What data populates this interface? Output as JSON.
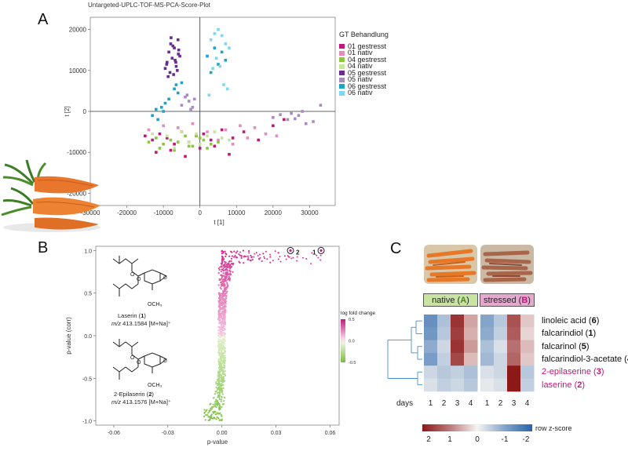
{
  "panels": {
    "a": "A",
    "b": "B",
    "c": "C"
  },
  "panel_a": {
    "title": "Untargeted-UPLC-TOF-MS-PCA-Score-Plot",
    "legend_title": "GT Behandlung",
    "legend": [
      {
        "label": "01 gestresst",
        "color": "#c2187a"
      },
      {
        "label": "01 nativ",
        "color": "#e58ac0"
      },
      {
        "label": "04 gestresst",
        "color": "#8cc63f"
      },
      {
        "label": "04 nativ",
        "color": "#c8e39a"
      },
      {
        "label": "05 gestresst",
        "color": "#6a2c91"
      },
      {
        "label": "05 nativ",
        "color": "#a98bc4"
      },
      {
        "label": "06 gestresst",
        "color": "#1ca3c6"
      },
      {
        "label": "06 nativ",
        "color": "#7fd6ee"
      }
    ],
    "xlabel": "t [1]",
    "ylabel": "t [2]",
    "xticks": [
      "-30000",
      "-20000",
      "-10000",
      "0",
      "10000",
      "20000",
      "30000"
    ],
    "yticks": [
      "20000",
      "10000",
      "0",
      "-10000",
      "-20000"
    ],
    "photo": "carrots-photo"
  },
  "panel_b": {
    "xlabel": "p-value",
    "ylabel": "p-value (corr)",
    "xticks": [
      "-0.06",
      "-0.03",
      "0.00",
      "0.03",
      "0.06"
    ],
    "yticks": [
      "1.0",
      "0.5",
      "0.0",
      "-0.5",
      "-1.0"
    ],
    "colorbar_title": "log fold change",
    "colorbar_ticks": [
      "0.5",
      "0.0",
      "-0.5"
    ],
    "compound1_name": "Laserin (",
    "compound1_num": "1",
    "compound1_close": ")",
    "compound1_mz": "m/z",
    "compound1_mass": " 413.1584 [M+Na]⁺",
    "compound2_name": "2-Epilaserin (",
    "compound2_num": "2",
    "compound2_close": ")",
    "compound2_mz": "m/z",
    "compound2_mass": " 413.1576 [M+Na]⁺",
    "substituent": "OCH₃",
    "mark1": "1",
    "mark2": "2"
  },
  "panel_c": {
    "native_label": "native (",
    "native_letter": "A",
    "native_close": ")",
    "stressed_label": "stressed (",
    "stressed_letter": "B",
    "stressed_close": ")",
    "rows": [
      {
        "name": "linoleic acid (",
        "num": "6",
        "color": "#111111"
      },
      {
        "name": "falcarindiol (",
        "num": "1",
        "color": "#111111"
      },
      {
        "name": "falcarinol (",
        "num": "5",
        "color": "#111111"
      },
      {
        "name": "falcarindiol-3-acetate (",
        "num": "4",
        "color": "#111111"
      },
      {
        "name": "2-epilaserine (",
        "num": "3",
        "color": "#c2187a"
      },
      {
        "name": "laserine (",
        "num": "2",
        "color": "#c2187a"
      }
    ],
    "days_label": "days",
    "days": [
      "1",
      "2",
      "3",
      "4",
      "1",
      "2",
      "3",
      "4"
    ],
    "colorbar_title": "row z-score",
    "colorbar_ticks": [
      "2",
      "1",
      "0",
      "-1",
      "-2"
    ]
  },
  "chart_data": [
    {
      "type": "scatter",
      "title": "Untargeted-UPLC-TOF-MS-PCA-Score-Plot",
      "xlabel": "t [1]",
      "ylabel": "t [2]",
      "xlim": [
        -30000,
        37000
      ],
      "ylim": [
        -23000,
        23000
      ],
      "legend_position": "right",
      "series": [
        {
          "name": "05 gestresst",
          "color": "#6a2c91",
          "x": [
            -9000,
            -8500,
            -8000,
            -7600,
            -7000,
            -6500,
            -6000,
            -5500,
            -9500,
            -8200,
            -7200,
            -6800,
            -5800,
            -7900,
            -9100,
            -6200,
            -7400,
            -8700,
            -5900,
            -6600
          ],
          "y": [
            12000,
            14500,
            16500,
            13000,
            15500,
            11000,
            17500,
            13500,
            10500,
            9500,
            9000,
            12500,
            15000,
            18000,
            11500,
            10000,
            16000,
            8500,
            14000,
            12000
          ]
        },
        {
          "name": "05 nativ",
          "color": "#a98bc4",
          "x": [
            -3000,
            -4000,
            -2500,
            -5000,
            -1500,
            -3500,
            -2000,
            20000,
            24000,
            26000,
            27000,
            28000,
            31000,
            33000,
            25000,
            29000,
            22000
          ],
          "y": [
            2500,
            3500,
            500,
            1500,
            3000,
            4000,
            1000,
            -1500,
            -2000,
            -1800,
            -1000,
            0,
            -2500,
            1500,
            -500,
            -3000,
            -800
          ]
        },
        {
          "name": "06 gestresst",
          "color": "#1ca3c6",
          "x": [
            -13000,
            -12000,
            -11500,
            -10500,
            -10000,
            -9500,
            -8500,
            -7000,
            -6500,
            -6000,
            -5000,
            2000,
            4000,
            5000,
            6000,
            7000,
            3000
          ],
          "y": [
            -1000,
            500,
            -2000,
            1000,
            0,
            2000,
            3000,
            5500,
            6500,
            4500,
            7000,
            13500,
            15500,
            11500,
            14500,
            12500,
            9500
          ]
        },
        {
          "name": "06 nativ",
          "color": "#7fd6ee",
          "x": [
            3000,
            4000,
            5000,
            6000,
            7000,
            8000,
            4500,
            5500,
            3500,
            6500,
            7500,
            2500
          ],
          "y": [
            17500,
            19000,
            20000,
            18500,
            16500,
            15500,
            13000,
            11000,
            10500,
            6500,
            5500,
            4000
          ]
        },
        {
          "name": "01 gestresst",
          "color": "#c2187a",
          "x": [
            -15000,
            -13000,
            -11000,
            -9000,
            -7000,
            -5000,
            -3000,
            -1000,
            1000,
            3000,
            6000,
            9000,
            12000,
            16000,
            20000,
            23000,
            -12000,
            -8000,
            -4000,
            0,
            4000,
            8000
          ],
          "y": [
            -6000,
            -7000,
            -5500,
            -6500,
            -8000,
            -5000,
            -7500,
            -6000,
            -5500,
            -7000,
            -4500,
            -6500,
            -5000,
            -7000,
            -3500,
            -2000,
            -10000,
            -9500,
            -11000,
            -9000,
            -8500,
            -10500
          ]
        },
        {
          "name": "01 nativ",
          "color": "#e58ac0",
          "x": [
            -14000,
            -10000,
            -6000,
            -2000,
            2000,
            7000,
            11000,
            15000,
            18000,
            21000,
            5000,
            9000,
            13000,
            -3000
          ],
          "y": [
            -4500,
            -3500,
            -4000,
            -3000,
            -5000,
            -4500,
            -3500,
            -4000,
            -5500,
            -6000,
            -7000,
            -8000,
            -6500,
            -8500
          ]
        },
        {
          "name": "04 gestresst",
          "color": "#8cc63f",
          "x": [
            -14000,
            -12000,
            -10000,
            -8000,
            -6000,
            -4000,
            -2000,
            0,
            1000,
            3000,
            5000,
            -11000,
            -7000,
            -3000,
            -1000,
            2000
          ],
          "y": [
            -7500,
            -6500,
            -8000,
            -7000,
            -7500,
            -6000,
            -8500,
            -6500,
            -7000,
            -8000,
            -7500,
            -9000,
            -9500,
            -8500,
            -6000,
            -9000
          ]
        },
        {
          "name": "04 nativ",
          "color": "#c8e39a",
          "x": [
            -13000,
            -9000,
            -5000,
            -1000,
            2000,
            4000,
            -7000,
            -3000,
            0,
            6000,
            8000
          ],
          "y": [
            -5500,
            -6000,
            -5000,
            -5500,
            -6000,
            -5000,
            -9000,
            -7500,
            -8000,
            -6500,
            -7000
          ]
        }
      ]
    },
    {
      "type": "scatter",
      "xlabel": "p-value",
      "ylabel": "p-value (corr)",
      "xlim": [
        -0.07,
        0.065
      ],
      "ylim": [
        -1.05,
        1.05
      ],
      "colorbar": {
        "title": "log fold change",
        "range": [
          -0.5,
          0.5
        ]
      },
      "highlighted_points": [
        {
          "label": "1",
          "x": 0.055,
          "y": 1.0
        },
        {
          "label": "2",
          "x": 0.038,
          "y": 1.0
        }
      ]
    },
    {
      "type": "heatmap",
      "rows": [
        "linoleic acid (6)",
        "falcarindiol (1)",
        "falcarinol (5)",
        "falcarindiol-3-acetate (4)",
        "2-epilaserine (3)",
        "laserine (2)"
      ],
      "columns": [
        "native day 1",
        "native day 2",
        "native day 3",
        "native day 4",
        "stressed day 1",
        "stressed day 2",
        "stressed day 3",
        "stressed day 4"
      ],
      "values": [
        [
          -1.3,
          -0.6,
          1.7,
          0.6,
          -1.0,
          -0.5,
          1.4,
          0.3
        ],
        [
          -1.2,
          -0.5,
          1.6,
          0.5,
          -0.9,
          -0.4,
          1.3,
          0.2
        ],
        [
          -0.9,
          -0.3,
          1.7,
          0.7,
          -0.6,
          -0.2,
          1.1,
          0.4
        ],
        [
          -1.1,
          -0.4,
          1.5,
          0.4,
          -0.7,
          -0.3,
          1.2,
          0.3
        ],
        [
          -0.3,
          -0.5,
          -0.4,
          -0.6,
          -0.2,
          -0.3,
          2.6,
          -0.5
        ],
        [
          -0.2,
          -0.4,
          -0.3,
          -0.5,
          -0.1,
          -0.2,
          2.7,
          -0.4
        ]
      ],
      "colorbar": {
        "title": "row z-score",
        "range": [
          -2,
          2
        ]
      }
    }
  ]
}
